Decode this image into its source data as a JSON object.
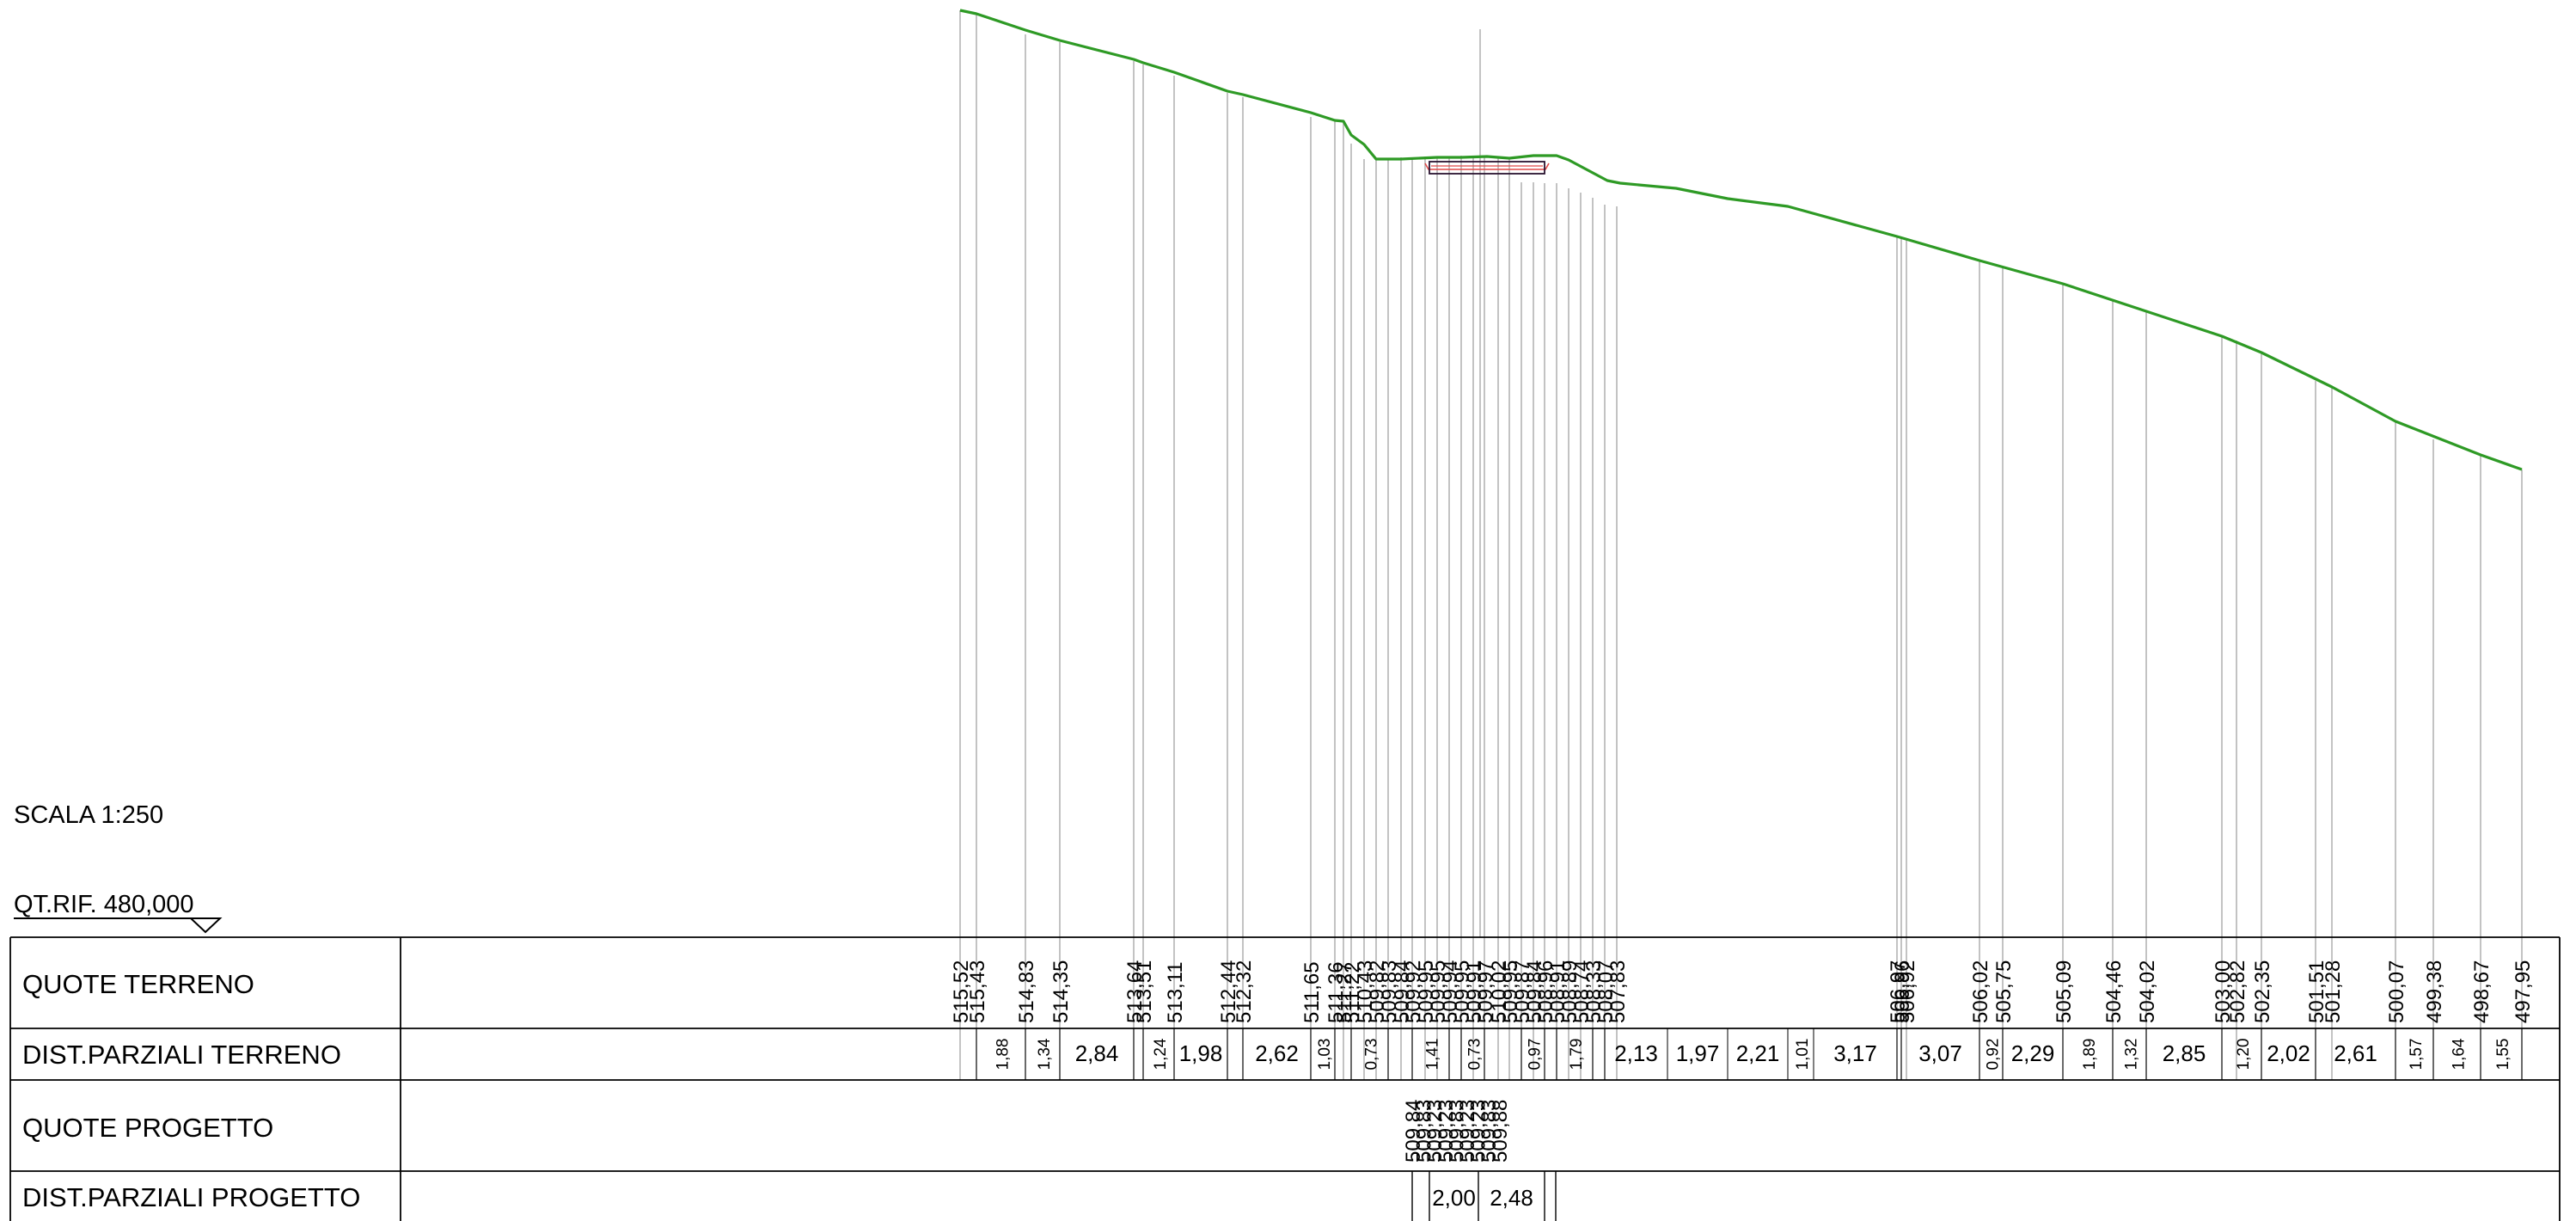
{
  "scale_label": "SCALA 1:250",
  "reference_label": "QT.RIF. 480,000",
  "table": {
    "row_labels": [
      "QUOTE TERRENO",
      "DIST.PARZIALI TERRENO",
      "QUOTE PROGETTO",
      "DIST.PARZIALI PROGETTO"
    ]
  },
  "colors": {
    "terrain": "#2e9a25",
    "grid": "#b4b4b4",
    "ink": "#000000",
    "project_red": "#e04848",
    "project_dark": "#2a1230"
  },
  "chart_data": {
    "type": "line",
    "series": [
      {
        "name": "",
        "values": []
      }
    ],
    "ground_elevations": [
      "515,52",
      "515,43",
      "514,83",
      "514,35",
      "513,64",
      "513,51",
      "513,11",
      "512,44",
      "512,32",
      "511,65",
      "511,36",
      "511,27",
      "511,22",
      "510,43",
      "509,82",
      "509,83",
      "509,84",
      "509,92",
      "509,95",
      "509,95",
      "509,94",
      "509,95",
      "509,91",
      "509,97",
      "510,02",
      "509,95",
      "509,87",
      "509,84",
      "508,96",
      "508,91",
      "508,89",
      "508,74",
      "508,33",
      "508,07",
      "507,83",
      "506,97",
      "506,96",
      "506,92",
      "506,02",
      "505,75",
      "505,09",
      "504,46",
      "504,02",
      "503,00",
      "502,82",
      "502,35",
      "501,51",
      "501,28",
      "500,07",
      "499,38",
      "498,67",
      "497,95"
    ],
    "ground_partial_distances": [
      "1,88",
      "1,34",
      "2,84",
      "1,24",
      "1,98",
      "2,62",
      "1,03",
      "0,73",
      "1,41",
      "0,73",
      "0,97",
      "1,79",
      "2,13",
      "1,97",
      "2,21",
      "1,01",
      "3,17",
      "3,07",
      "0,92",
      "2,29",
      "1,89",
      "1,32",
      "2,85",
      "1,20",
      "2,02",
      "2,61",
      "1,57",
      "1,64",
      "1,55"
    ],
    "project_elevations": [
      "509,84",
      "509,83",
      "509,23",
      "509,23",
      "509,83",
      "509,23",
      "509,23",
      "509,83",
      "509,88"
    ],
    "project_partial_distances": [
      "2,00",
      "2,48"
    ]
  }
}
